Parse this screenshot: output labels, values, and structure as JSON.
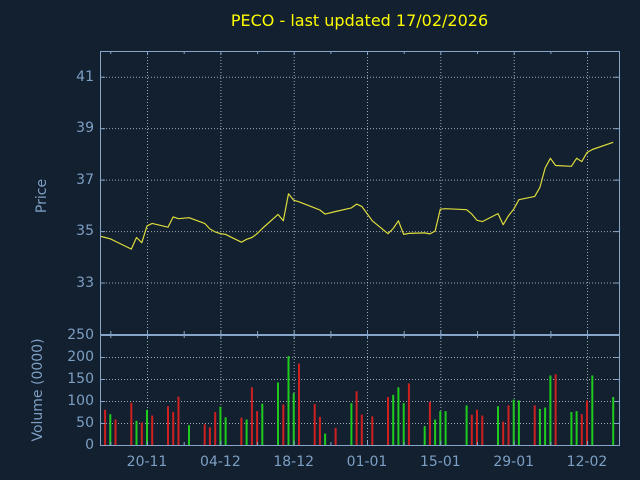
{
  "title": {
    "text": "PECO - last updated 17/02/2026"
  },
  "colors": {
    "background": "#12202f",
    "title_text": "#fdfd00",
    "axis_border": "#87a5c8",
    "axis_text": "#7e9fc4",
    "grid_dots": "#b8c2cc",
    "price_line": "#dedb3c",
    "volume_up_green": "#1ecb1e",
    "volume_down_red": "#cf2020"
  },
  "price_panel": {
    "ylabel": "Price",
    "yticks": [
      41,
      39,
      37,
      35,
      33
    ],
    "ymin": 31,
    "ymax": 42
  },
  "volume_panel": {
    "ylabel": "Volume (0000)",
    "yticks": [
      250,
      200,
      150,
      100,
      50,
      0
    ],
    "gridline_ticks": [
      200,
      150,
      100,
      50
    ],
    "ymin": 0,
    "ymax": 250
  },
  "x_axis": {
    "labels": [
      "20-11",
      "04-12",
      "18-12",
      "01-01",
      "15-01",
      "29-01",
      "12-02"
    ],
    "label_x": [
      147,
      220.4,
      293.7,
      367,
      440.3,
      513.7,
      587
    ],
    "minor_tick_x": [
      110.3,
      183.7,
      257.1,
      330.4,
      403.7,
      477,
      550.4
    ]
  },
  "chart_data": [
    {
      "type": "line",
      "name": "price",
      "title": "PECO - last updated 17/02/2026",
      "ylabel": "Price",
      "ylim": [
        31,
        42
      ],
      "grid": true,
      "legend": "none",
      "dates": [
        "11-11",
        "12-11",
        "13-11",
        "14-11",
        "17-11",
        "18-11",
        "19-11",
        "20-11",
        "21-11",
        "24-11",
        "25-11",
        "26-11",
        "28-11",
        "01-12",
        "02-12",
        "03-12",
        "04-12",
        "05-12",
        "08-12",
        "09-12",
        "10-12",
        "11-12",
        "12-12",
        "15-12",
        "16-12",
        "17-12",
        "18-12",
        "19-12",
        "22-12",
        "23-12",
        "24-12",
        "26-12",
        "29-12",
        "30-12",
        "31-12",
        "02-01",
        "05-01",
        "06-01",
        "07-01",
        "08-01",
        "09-01",
        "12-01",
        "13-01",
        "14-01",
        "15-01",
        "16-01",
        "20-01",
        "21-01",
        "22-01",
        "23-01",
        "26-01",
        "27-01",
        "28-01",
        "29-01",
        "30-01",
        "02-02",
        "03-02",
        "04-02",
        "05-02",
        "06-02",
        "09-02",
        "10-02",
        "11-02",
        "12-02",
        "13-02",
        "17-02"
      ],
      "x": [
        100,
        105.1,
        110.3,
        115.5,
        131.3,
        136.5,
        141.8,
        147,
        152.2,
        168,
        173.2,
        178.5,
        189,
        204.7,
        209.9,
        215.2,
        220.4,
        225.6,
        241.4,
        246.6,
        251.9,
        257.1,
        262.3,
        278,
        283.3,
        288.5,
        293.7,
        299,
        314.7,
        319.9,
        325.1,
        335.6,
        351.4,
        356.6,
        361.8,
        372.3,
        388,
        393.2,
        398.4,
        403.7,
        408.9,
        424.7,
        429.9,
        435.1,
        440.3,
        445.6,
        466.6,
        471.8,
        477,
        482.3,
        498,
        503.2,
        508.5,
        513.7,
        518.9,
        534.7,
        539.9,
        545.1,
        550.4,
        555.6,
        571.4,
        576.6,
        581.8,
        587,
        592.3,
        613.2
      ],
      "values": [
        34.8,
        34.75,
        34.7,
        34.6,
        34.3,
        34.75,
        34.55,
        35.2,
        35.3,
        35.15,
        35.55,
        35.48,
        35.52,
        35.3,
        35.08,
        34.97,
        34.9,
        34.87,
        34.57,
        34.68,
        34.75,
        34.9,
        35.1,
        35.65,
        35.4,
        36.45,
        36.2,
        36.14,
        35.9,
        35.82,
        35.66,
        35.76,
        35.9,
        36.05,
        35.96,
        35.4,
        34.9,
        35.1,
        35.4,
        34.87,
        34.91,
        34.93,
        34.89,
        35.0,
        35.85,
        35.87,
        35.83,
        35.66,
        35.42,
        35.37,
        35.68,
        35.25,
        35.6,
        35.85,
        36.22,
        36.35,
        36.7,
        37.45,
        37.83,
        37.55,
        37.52,
        37.83,
        37.7,
        38.05,
        38.17,
        38.45
      ]
    },
    {
      "type": "bar",
      "name": "volume",
      "ylabel": "Volume (0000)",
      "ylim": [
        0,
        250
      ],
      "grid": true,
      "legend": "none",
      "dates": [
        "12-11",
        "13-11",
        "14-11",
        "17-11",
        "18-11",
        "19-11",
        "20-11",
        "21-11",
        "24-11",
        "25-11",
        "26-11",
        "28-11",
        "01-12",
        "02-12",
        "03-12",
        "04-12",
        "05-12",
        "08-12",
        "09-12",
        "10-12",
        "11-12",
        "12-12",
        "15-12",
        "16-12",
        "17-12",
        "18-12",
        "19-12",
        "22-12",
        "23-12",
        "24-12",
        "26-12",
        "29-12",
        "30-12",
        "31-12",
        "02-01",
        "05-01",
        "06-01",
        "07-01",
        "08-01",
        "09-01",
        "12-01",
        "13-01",
        "14-01",
        "15-01",
        "16-01",
        "20-01",
        "21-01",
        "22-01",
        "23-01",
        "26-01",
        "27-01",
        "28-01",
        "29-01",
        "30-01",
        "02-02",
        "03-02",
        "04-02",
        "05-02",
        "06-02",
        "09-02",
        "10-02",
        "11-02",
        "12-02",
        "13-02",
        "17-02"
      ],
      "x": [
        105.1,
        110.3,
        115.5,
        131.3,
        136.5,
        141.8,
        147,
        152.2,
        168,
        173.2,
        178.5,
        189,
        204.7,
        209.9,
        215.2,
        220.4,
        225.6,
        241.4,
        246.6,
        251.9,
        257.1,
        262.3,
        278,
        283.3,
        288.5,
        293.7,
        299,
        314.7,
        319.9,
        325.1,
        335.6,
        351.4,
        356.6,
        361.8,
        372.3,
        388,
        393.2,
        398.4,
        403.7,
        408.9,
        424.7,
        429.9,
        435.1,
        440.3,
        445.6,
        466.6,
        471.8,
        477,
        482.3,
        498,
        503.2,
        508.5,
        513.7,
        518.9,
        534.7,
        539.9,
        545.1,
        550.4,
        555.6,
        571.4,
        576.6,
        581.8,
        587,
        592.3,
        613.2
      ],
      "values": [
        80,
        70,
        58,
        96,
        55,
        51,
        80,
        67,
        88,
        75,
        110,
        45,
        47,
        40,
        75,
        87,
        63,
        62,
        58,
        131,
        77,
        94,
        142,
        92,
        202,
        118,
        185,
        93,
        64,
        26,
        39,
        95,
        122,
        69,
        65,
        109,
        114,
        131,
        95,
        140,
        43,
        98,
        58,
        77,
        77,
        90,
        69,
        80,
        67,
        88,
        53,
        90,
        103,
        101,
        90,
        82,
        85,
        158,
        161,
        75,
        77,
        70,
        101,
        158,
        109
      ],
      "direction": [
        "r",
        "g",
        "r",
        "r",
        "g",
        "r",
        "g",
        "r",
        "r",
        "r",
        "r",
        "g",
        "r",
        "r",
        "r",
        "g",
        "g",
        "r",
        "g",
        "r",
        "r",
        "g",
        "g",
        "r",
        "g",
        "g",
        "r",
        "r",
        "r",
        "g",
        "r",
        "g",
        "r",
        "r",
        "r",
        "r",
        "g",
        "g",
        "g",
        "r",
        "g",
        "r",
        "g",
        "g",
        "g",
        "g",
        "r",
        "r",
        "r",
        "g",
        "r",
        "r",
        "g",
        "g",
        "r",
        "g",
        "g",
        "g",
        "r",
        "g",
        "g",
        "r",
        "r",
        "g",
        "g"
      ]
    }
  ]
}
